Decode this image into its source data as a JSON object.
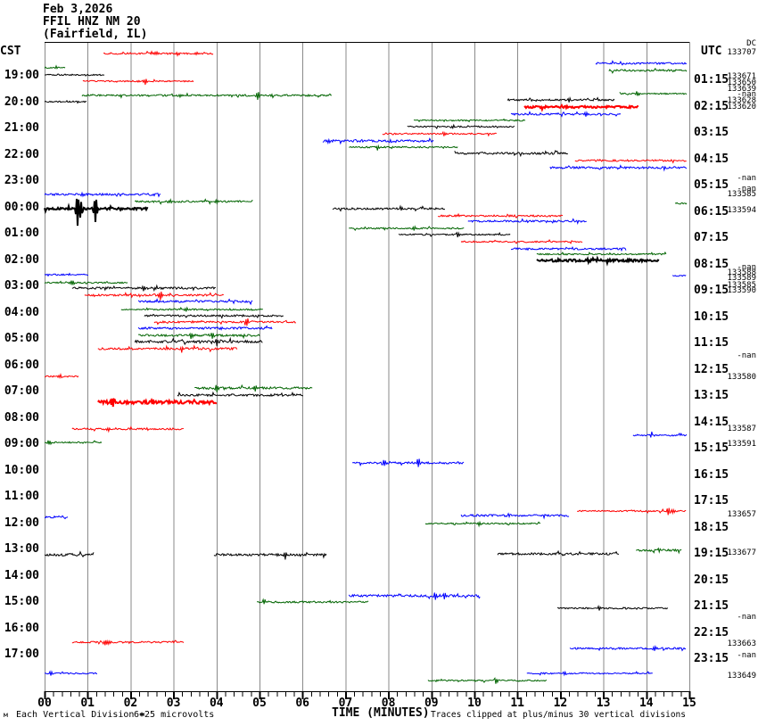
{
  "header": {
    "date": "Feb 3,2026",
    "station": "FFIL HNZ NM 20",
    "location": "(Fairfield, IL)"
  },
  "axes": {
    "left_label": "CST",
    "right_label": "UTC",
    "x_title": "TIME (MINUTES)",
    "x_ticks": [
      "00",
      "01",
      "02",
      "03",
      "04",
      "05",
      "06",
      "07",
      "08",
      "09",
      "10",
      "11",
      "12",
      "13",
      "14",
      "15"
    ]
  },
  "footer": {
    "watermark": "м",
    "scale_label": "Each Vertical Division =",
    "scale_value": "6+25 microvolts",
    "clip_note": "Traces clipped at plus/minus 30 vertical divisions"
  },
  "left_times": [
    "19:00",
    "20:00",
    "21:00",
    "22:00",
    "23:00",
    "00:00",
    "01:00",
    "02:00",
    "03:00",
    "04:00",
    "05:00",
    "06:00",
    "07:00",
    "08:00",
    "09:00",
    "10:00",
    "11:00",
    "12:00",
    "13:00",
    "14:00",
    "15:00",
    "16:00",
    "17:00"
  ],
  "right_times": [
    "01:15",
    "02:15",
    "03:15",
    "04:15",
    "05:15",
    "06:15",
    "07:15",
    "08:15",
    "09:15",
    "10:15",
    "11:15",
    "12:15",
    "13:15",
    "14:15",
    "15:15",
    "16:15",
    "17:15",
    "18:15",
    "19:15",
    "20:15",
    "21:15",
    "22:15",
    "23:15"
  ],
  "right_annotations": [
    {
      "text": "DC",
      "y": 49,
      "pad": 14
    },
    {
      "text": "133707",
      "y": 59
    },
    {
      "text": "133671",
      "y": 86
    },
    {
      "text": "133650",
      "y": 93
    },
    {
      "text": "133639",
      "y": 100
    },
    {
      "text": "-nan",
      "y": 106
    },
    {
      "text": "133628",
      "y": 113
    },
    {
      "text": "133620",
      "y": 120
    },
    {
      "text": "-nan",
      "y": 200
    },
    {
      "text": "-nan",
      "y": 212
    },
    {
      "text": "133585",
      "y": 218
    },
    {
      "text": "133594",
      "y": 236
    },
    {
      "text": "-nan",
      "y": 300
    },
    {
      "text": "133588",
      "y": 306
    },
    {
      "text": "133589",
      "y": 312
    },
    {
      "text": "133585",
      "y": 320
    },
    {
      "text": "133590",
      "y": 326
    },
    {
      "text": "-nan",
      "y": 399
    },
    {
      "text": "133580",
      "y": 423
    },
    {
      "text": "133587",
      "y": 481
    },
    {
      "text": "133591",
      "y": 498
    },
    {
      "text": "133657",
      "y": 577
    },
    {
      "text": "133677",
      "y": 620
    },
    {
      "text": "-nan",
      "y": 692
    },
    {
      "text": "133663",
      "y": 722
    },
    {
      "text": "-nan",
      "y": 735
    },
    {
      "text": "133649",
      "y": 758
    }
  ],
  "chart_data": {
    "type": "line",
    "title": "FFIL HNZ NM 20 helicorder, Feb 3,2026, Fairfield IL",
    "xlabel": "TIME (MINUTES)",
    "x_range_minutes": [
      0,
      15
    ],
    "minutes_per_line": 15,
    "grid": true,
    "colors": {
      "k": "#000000",
      "r": "#ff0000",
      "b": "#0000ff",
      "g": "#006400",
      "grid": "#8a8a8a"
    },
    "segments": [
      {
        "c": "g",
        "m0": 0,
        "m1": 0.48,
        "y": 76,
        "a": 0.8
      },
      {
        "c": "k",
        "m0": 0,
        "m1": 1.41,
        "y": 84,
        "a": 0.8
      },
      {
        "c": "r",
        "m0": 1.37,
        "m1": 3.94,
        "y": 60,
        "a": 1,
        "ev": [
          [
            2.6,
            2
          ],
          [
            3.1,
            2
          ]
        ]
      },
      {
        "c": "r",
        "m0": 0.89,
        "m1": 3.47,
        "y": 91,
        "a": 0.8,
        "ev": [
          [
            2.34,
            4
          ]
        ]
      },
      {
        "c": "g",
        "m0": 0.87,
        "m1": 6.68,
        "y": 107,
        "a": 1,
        "ev": [
          [
            4.95,
            4
          ],
          [
            5.3,
            2
          ]
        ]
      },
      {
        "c": "b",
        "m0": 12.82,
        "m1": 14.94,
        "y": 71,
        "a": 1
      },
      {
        "c": "g",
        "m0": 13.13,
        "m1": 14.94,
        "y": 79,
        "a": 1.2
      },
      {
        "c": "g",
        "m0": 13.38,
        "m1": 14.94,
        "y": 105,
        "a": 0.8,
        "ev": [
          [
            13.8,
            2
          ]
        ]
      },
      {
        "c": "k",
        "m0": 0,
        "m1": 0.98,
        "y": 114,
        "a": 0.8
      },
      {
        "c": "k",
        "m0": 10.77,
        "m1": 13.28,
        "y": 112,
        "a": 1,
        "ev": [
          [
            12.2,
            2
          ]
        ]
      },
      {
        "c": "r",
        "m0": 11.16,
        "m1": 13.82,
        "y": 120,
        "a": 1.2,
        "w": 2
      },
      {
        "c": "b",
        "m0": 10.85,
        "m1": 13.42,
        "y": 128,
        "a": 1,
        "ev": [
          [
            12.6,
            3
          ]
        ]
      },
      {
        "c": "g",
        "m0": 8.59,
        "m1": 11.2,
        "y": 135,
        "a": 0.8
      },
      {
        "c": "k",
        "m0": 8.44,
        "m1": 10.95,
        "y": 142,
        "a": 0.8,
        "ev": [
          [
            9.5,
            2
          ]
        ]
      },
      {
        "c": "r",
        "m0": 7.86,
        "m1": 10.52,
        "y": 150,
        "a": 0.8,
        "ev": [
          [
            9.3,
            2
          ]
        ]
      },
      {
        "c": "b",
        "m0": 6.47,
        "m1": 9.05,
        "y": 158,
        "a": 1.2,
        "ev": [
          [
            6.6,
            3
          ]
        ]
      },
      {
        "c": "g",
        "m0": 7.08,
        "m1": 9.63,
        "y": 165,
        "a": 0.8,
        "ev": [
          [
            7.75,
            3
          ]
        ]
      },
      {
        "c": "k",
        "m0": 9.54,
        "m1": 12.18,
        "y": 172,
        "a": 1.2
      },
      {
        "c": "r",
        "m0": 12.34,
        "m1": 14.94,
        "y": 180,
        "a": 1
      },
      {
        "c": "b",
        "m0": 11.76,
        "m1": 14.94,
        "y": 188,
        "a": 1.2
      },
      {
        "c": "b",
        "m0": 0,
        "m1": 2.7,
        "y": 218,
        "a": 1.2,
        "ev": [
          [
            0.9,
            2
          ]
        ]
      },
      {
        "c": "g",
        "m0": 2.1,
        "m1": 4.85,
        "y": 226,
        "a": 1,
        "ev": [
          [
            2.9,
            2
          ],
          [
            4.0,
            2
          ]
        ]
      },
      {
        "c": "g",
        "m0": 14.67,
        "m1": 14.94,
        "y": 228,
        "a": 1
      },
      {
        "c": "k",
        "m0": 0,
        "m1": 2.41,
        "y": 234,
        "a": 1.2,
        "w": 2,
        "ev": [
          [
            0.77,
            19
          ],
          [
            0.83,
            10
          ],
          [
            1.18,
            15
          ]
        ]
      },
      {
        "c": "k",
        "m0": 6.7,
        "m1": 9.32,
        "y": 234,
        "a": 1,
        "ev": [
          [
            8.3,
            3
          ]
        ]
      },
      {
        "c": "r",
        "m0": 9.15,
        "m1": 12.07,
        "y": 242,
        "a": 1
      },
      {
        "c": "b",
        "m0": 9.85,
        "m1": 12.61,
        "y": 248,
        "a": 1
      },
      {
        "c": "g",
        "m0": 7.08,
        "m1": 9.77,
        "y": 256,
        "a": 0.8,
        "ev": [
          [
            8.6,
            3
          ]
        ]
      },
      {
        "c": "k",
        "m0": 8.24,
        "m1": 10.85,
        "y": 263,
        "a": 0.8,
        "ev": [
          [
            9.6,
            3
          ]
        ]
      },
      {
        "c": "r",
        "m0": 9.69,
        "m1": 12.53,
        "y": 271,
        "a": 0.8
      },
      {
        "c": "b",
        "m0": 10.85,
        "m1": 13.53,
        "y": 279,
        "a": 1
      },
      {
        "c": "g",
        "m0": 11.45,
        "m1": 14.46,
        "y": 285,
        "a": 0.8
      },
      {
        "c": "k",
        "m0": 11.45,
        "m1": 14.3,
        "y": 292,
        "a": 1.4,
        "w": 2
      },
      {
        "c": "b",
        "m0": 14.61,
        "m1": 14.94,
        "y": 309,
        "a": 0.8
      },
      {
        "c": "b",
        "m0": 0,
        "m1": 1.02,
        "y": 308,
        "a": 0.8
      },
      {
        "c": "g",
        "m0": 0,
        "m1": 1.95,
        "y": 317,
        "a": 0.8,
        "ev": [
          [
            0.64,
            3
          ]
        ]
      },
      {
        "c": "k",
        "m0": 0.64,
        "m1": 4.0,
        "y": 323,
        "a": 1.2,
        "ev": [
          [
            2.3,
            3
          ]
        ]
      },
      {
        "c": "r",
        "m0": 0.93,
        "m1": 4.17,
        "y": 331,
        "a": 1,
        "ev": [
          [
            2.7,
            5
          ]
        ]
      },
      {
        "c": "b",
        "m0": 2.18,
        "m1": 4.85,
        "y": 338,
        "a": 1.2
      },
      {
        "c": "g",
        "m0": 1.78,
        "m1": 5.08,
        "y": 347,
        "a": 0.8,
        "ev": [
          [
            3.3,
            2
          ]
        ]
      },
      {
        "c": "k",
        "m0": 2.32,
        "m1": 5.56,
        "y": 354,
        "a": 1
      },
      {
        "c": "r",
        "m0": 2.55,
        "m1": 5.85,
        "y": 361,
        "a": 1,
        "ev": [
          [
            4.7,
            4
          ]
        ]
      },
      {
        "c": "b",
        "m0": 2.18,
        "m1": 5.31,
        "y": 368,
        "a": 1.2,
        "ev": [
          [
            4.1,
            2
          ]
        ]
      },
      {
        "c": "g",
        "m0": 2.18,
        "m1": 5.02,
        "y": 376,
        "a": 1.2,
        "ev": [
          [
            3.4,
            3
          ],
          [
            3.9,
            4
          ]
        ]
      },
      {
        "c": "k",
        "m0": 2.1,
        "m1": 5.08,
        "y": 383,
        "a": 1.4,
        "ev": [
          [
            4.0,
            3
          ]
        ]
      },
      {
        "c": "r",
        "m0": 1.24,
        "m1": 4.48,
        "y": 391,
        "a": 1.2,
        "ev": [
          [
            3.2,
            4
          ]
        ]
      },
      {
        "c": "r",
        "m0": 0,
        "m1": 0.79,
        "y": 422,
        "a": 0.8,
        "ev": [
          [
            0.35,
            2
          ]
        ]
      },
      {
        "c": "g",
        "m0": 3.49,
        "m1": 6.24,
        "y": 435,
        "a": 1.2,
        "ev": [
          [
            4.0,
            4
          ],
          [
            4.9,
            4
          ]
        ]
      },
      {
        "c": "k",
        "m0": 3.09,
        "m1": 6.02,
        "y": 443,
        "a": 1.2
      },
      {
        "c": "r",
        "m0": 1.24,
        "m1": 4.0,
        "y": 451,
        "a": 1.8,
        "w": 2,
        "ev": [
          [
            1.6,
            4
          ],
          [
            2.5,
            3
          ]
        ]
      },
      {
        "c": "r",
        "m0": 0.64,
        "m1": 3.24,
        "y": 481,
        "a": 1,
        "ev": [
          [
            1.5,
            2
          ],
          [
            2.4,
            2
          ]
        ]
      },
      {
        "c": "b",
        "m0": 13.69,
        "m1": 14.94,
        "y": 488,
        "a": 1,
        "ev": [
          [
            14.1,
            2
          ]
        ]
      },
      {
        "c": "g",
        "m0": 0,
        "m1": 1.33,
        "y": 496,
        "a": 0.8,
        "ev": [
          [
            0.1,
            3
          ]
        ]
      },
      {
        "c": "b",
        "m0": 7.16,
        "m1": 9.77,
        "y": 519,
        "a": 1.2,
        "ev": [
          [
            7.9,
            4
          ],
          [
            8.7,
            5
          ]
        ]
      },
      {
        "c": "r",
        "m0": 12.39,
        "m1": 14.94,
        "y": 573,
        "a": 0.8,
        "ev": [
          [
            14.5,
            5
          ],
          [
            14.6,
            3
          ]
        ]
      },
      {
        "c": "b",
        "m0": 0,
        "m1": 0.56,
        "y": 580,
        "a": 0.8
      },
      {
        "c": "b",
        "m0": 9.69,
        "m1": 12.22,
        "y": 578,
        "a": 1.2,
        "ev": [
          [
            10.8,
            2
          ]
        ]
      },
      {
        "c": "g",
        "m0": 8.86,
        "m1": 11.54,
        "y": 587,
        "a": 0.8,
        "ev": [
          [
            10.1,
            3
          ]
        ]
      },
      {
        "c": "k",
        "m0": 0,
        "m1": 1.16,
        "y": 622,
        "a": 1.4
      },
      {
        "c": "k",
        "m0": 3.94,
        "m1": 6.56,
        "y": 622,
        "a": 1.2,
        "ev": [
          [
            5.6,
            5
          ]
        ]
      },
      {
        "c": "k",
        "m0": 10.54,
        "m1": 13.38,
        "y": 621,
        "a": 1.2
      },
      {
        "c": "g",
        "m0": 13.76,
        "m1": 14.83,
        "y": 617,
        "a": 1.2,
        "ev": [
          [
            14.3,
            2
          ]
        ]
      },
      {
        "c": "b",
        "m0": 7.08,
        "m1": 10.15,
        "y": 668,
        "a": 1.2,
        "ev": [
          [
            9.1,
            4
          ],
          [
            9.3,
            3
          ]
        ]
      },
      {
        "c": "g",
        "m0": 4.94,
        "m1": 7.55,
        "y": 675,
        "a": 1,
        "ev": [
          [
            5.1,
            3
          ]
        ]
      },
      {
        "c": "k",
        "m0": 11.93,
        "m1": 14.52,
        "y": 682,
        "a": 0.8,
        "ev": [
          [
            12.9,
            3
          ]
        ]
      },
      {
        "c": "r",
        "m0": 0.64,
        "m1": 3.24,
        "y": 720,
        "a": 1,
        "ev": [
          [
            1.4,
            4
          ],
          [
            1.5,
            3
          ]
        ]
      },
      {
        "c": "b",
        "m0": 12.22,
        "m1": 14.92,
        "y": 727,
        "a": 1,
        "ev": [
          [
            14.2,
            3
          ]
        ]
      },
      {
        "c": "b",
        "m0": 0,
        "m1": 1.24,
        "y": 755,
        "a": 0.8,
        "ev": [
          [
            0.15,
            3
          ]
        ]
      },
      {
        "c": "b",
        "m0": 11.22,
        "m1": 14.15,
        "y": 755,
        "a": 0.8,
        "ev": [
          [
            12.1,
            2
          ]
        ]
      },
      {
        "c": "g",
        "m0": 8.92,
        "m1": 11.68,
        "y": 763,
        "a": 0.8,
        "ev": [
          [
            10.5,
            3
          ]
        ]
      }
    ]
  }
}
